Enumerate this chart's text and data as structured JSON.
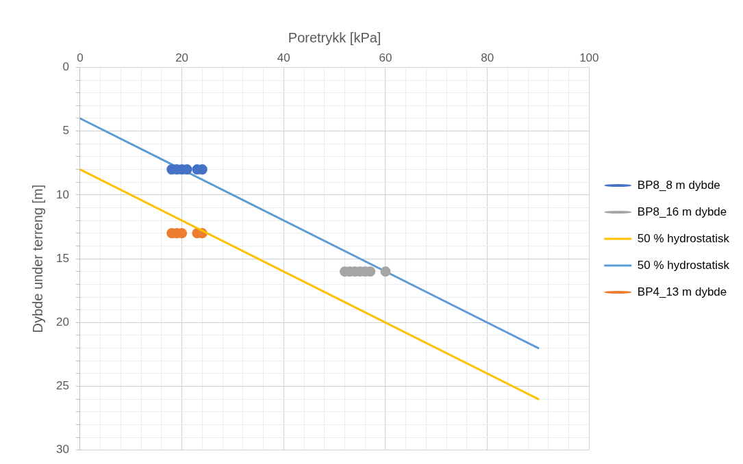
{
  "chart_data": {
    "type": "line",
    "xlabel": "Poretrykk [kPa]",
    "ylabel": "Dybde under terreng [m]",
    "xlim": [
      0,
      100
    ],
    "ylim": [
      30,
      0
    ],
    "xticks": [
      0,
      {
        "value": 4,
        "label": null
      },
      {
        "value": 8,
        "label": null
      },
      {
        "value": 12,
        "label": null
      },
      {
        "value": 16,
        "label": null
      },
      20,
      {
        "value": 24,
        "label": null
      },
      {
        "value": 28,
        "label": null
      },
      {
        "value": 32,
        "label": null
      },
      {
        "value": 36,
        "label": null
      },
      40,
      {
        "value": 44,
        "label": null
      },
      {
        "value": 48,
        "label": null
      },
      {
        "value": 52,
        "label": null
      },
      {
        "value": 56,
        "label": null
      },
      60,
      {
        "value": 64,
        "label": null
      },
      {
        "value": 68,
        "label": null
      },
      {
        "value": 72,
        "label": null
      },
      {
        "value": 76,
        "label": null
      },
      80,
      {
        "value": 84,
        "label": null
      },
      {
        "value": 88,
        "label": null
      },
      {
        "value": 92,
        "label": null
      },
      {
        "value": 96,
        "label": null
      },
      100
    ],
    "yticks": [
      0,
      {
        "value": 1,
        "label": null
      },
      {
        "value": 2,
        "label": null
      },
      {
        "value": 3,
        "label": null
      },
      {
        "value": 4,
        "label": null
      },
      5,
      {
        "value": 6,
        "label": null
      },
      {
        "value": 7,
        "label": null
      },
      {
        "value": 8,
        "label": null
      },
      {
        "value": 9,
        "label": null
      },
      10,
      {
        "value": 11,
        "label": null
      },
      {
        "value": 12,
        "label": null
      },
      {
        "value": 13,
        "label": null
      },
      {
        "value": 14,
        "label": null
      },
      15,
      {
        "value": 16,
        "label": null
      },
      {
        "value": 17,
        "label": null
      },
      {
        "value": 18,
        "label": null
      },
      {
        "value": 19,
        "label": null
      },
      20,
      {
        "value": 21,
        "label": null
      },
      {
        "value": 22,
        "label": null
      },
      {
        "value": 23,
        "label": null
      },
      {
        "value": 24,
        "label": null
      },
      25,
      {
        "value": 26,
        "label": null
      },
      {
        "value": 27,
        "label": null
      },
      {
        "value": 28,
        "label": null
      },
      {
        "value": 29,
        "label": null
      },
      30
    ],
    "grid": true,
    "legend": "right",
    "series": [
      {
        "name": "BP8_8 m dybde",
        "type": "scatter",
        "color": "#4472c4",
        "marker": "circle",
        "x": [
          18,
          19,
          20,
          21,
          23,
          24
        ],
        "values": [
          8,
          8,
          8,
          8,
          8,
          8
        ]
      },
      {
        "name": "BP8_16 m dybde",
        "type": "scatter",
        "color": "#a5a5a5",
        "marker": "circle",
        "x": [
          52,
          53,
          54,
          55,
          56,
          57,
          60
        ],
        "values": [
          16,
          16,
          16,
          16,
          16,
          16,
          16
        ]
      },
      {
        "name": "50 % hydrostatisk",
        "color": "#ffc000",
        "marker": "none",
        "x": [
          0,
          90
        ],
        "values": [
          8,
          26
        ]
      },
      {
        "name": "50 % hydrostatisk",
        "color": "#5b9bd5",
        "marker": "none",
        "x": [
          0,
          90
        ],
        "values": [
          4,
          22
        ]
      },
      {
        "name": "BP4_13 m dybde",
        "type": "scatter",
        "color": "#ed7d31",
        "marker": "circle",
        "x": [
          18,
          19,
          20,
          23,
          24
        ],
        "values": [
          13,
          13,
          13,
          13,
          13
        ]
      }
    ]
  }
}
